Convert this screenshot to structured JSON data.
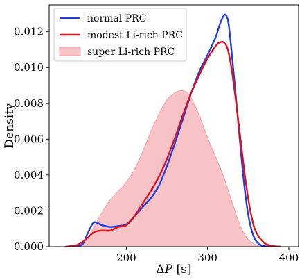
{
  "chart_data": {
    "type": "area",
    "xlabel_prefix": "Δ",
    "xlabel_var": "P",
    "xlabel_unit": " [s]",
    "ylabel": "Density",
    "xlim": [
      105,
      412
    ],
    "ylim": [
      0,
      0.0135
    ],
    "x_ticks": [
      200,
      300,
      400
    ],
    "x_tick_labels": [
      "200",
      "300",
      "400"
    ],
    "y_ticks": [
      0,
      0.002,
      0.004,
      0.006,
      0.008,
      0.01,
      0.012
    ],
    "y_tick_labels": [
      "0.000",
      "0.002",
      "0.004",
      "0.006",
      "0.008",
      "0.010",
      "0.012"
    ],
    "grid": false,
    "legend_position": "upper-left",
    "series": [
      {
        "name": "normal PRC",
        "style": "line",
        "color": "#1f3fe0",
        "x": [
          130,
          145,
          152,
          160,
          170,
          180,
          190,
          200,
          210,
          220,
          230,
          240,
          250,
          260,
          270,
          280,
          290,
          300,
          310,
          315,
          320,
          323,
          326,
          330,
          335,
          340,
          345,
          350,
          355,
          360,
          365,
          370,
          375,
          380
        ],
        "y": [
          0,
          0.0001,
          0.0007,
          0.00135,
          0.0012,
          0.0011,
          0.00115,
          0.00125,
          0.0017,
          0.0022,
          0.0027,
          0.0034,
          0.0045,
          0.0058,
          0.0072,
          0.0086,
          0.0098,
          0.0107,
          0.0117,
          0.0124,
          0.0129,
          0.0129,
          0.0124,
          0.0107,
          0.0083,
          0.0058,
          0.0035,
          0.0018,
          0.0008,
          0.0003,
          0.0001,
          3e-05,
          1e-05,
          0
        ]
      },
      {
        "name": "modest Li-rich PRC",
        "style": "line",
        "color": "#e0101c",
        "x": [
          125,
          140,
          150,
          160,
          170,
          180,
          190,
          200,
          210,
          220,
          230,
          240,
          250,
          260,
          270,
          280,
          290,
          300,
          310,
          315,
          320,
          325,
          330,
          335,
          340,
          345,
          350,
          355,
          360,
          370,
          380,
          390
        ],
        "y": [
          0,
          0.0001,
          0.0004,
          0.0008,
          0.0009,
          0.0009,
          0.0011,
          0.0012,
          0.0017,
          0.0024,
          0.0031,
          0.0039,
          0.0049,
          0.0061,
          0.0074,
          0.0086,
          0.0096,
          0.0105,
          0.0112,
          0.0114,
          0.0114,
          0.011,
          0.0098,
          0.0081,
          0.0062,
          0.0043,
          0.0027,
          0.0015,
          0.0008,
          0.0002,
          4e-05,
          0
        ]
      },
      {
        "name": "super Li-rich PRC",
        "style": "fill",
        "color": "#f08890",
        "x": [
          140,
          150,
          160,
          170,
          180,
          190,
          200,
          210,
          220,
          230,
          240,
          250,
          260,
          265,
          270,
          275,
          280,
          290,
          300,
          310,
          320,
          330,
          340,
          350,
          360,
          370
        ],
        "y": [
          0,
          0.0003,
          0.0011,
          0.0019,
          0.0026,
          0.0031,
          0.0036,
          0.0043,
          0.0053,
          0.0064,
          0.0074,
          0.0082,
          0.0086,
          0.0087,
          0.0087,
          0.0086,
          0.0083,
          0.0073,
          0.0061,
          0.005,
          0.0039,
          0.0025,
          0.0012,
          0.0004,
          0.0001,
          0
        ]
      }
    ]
  }
}
